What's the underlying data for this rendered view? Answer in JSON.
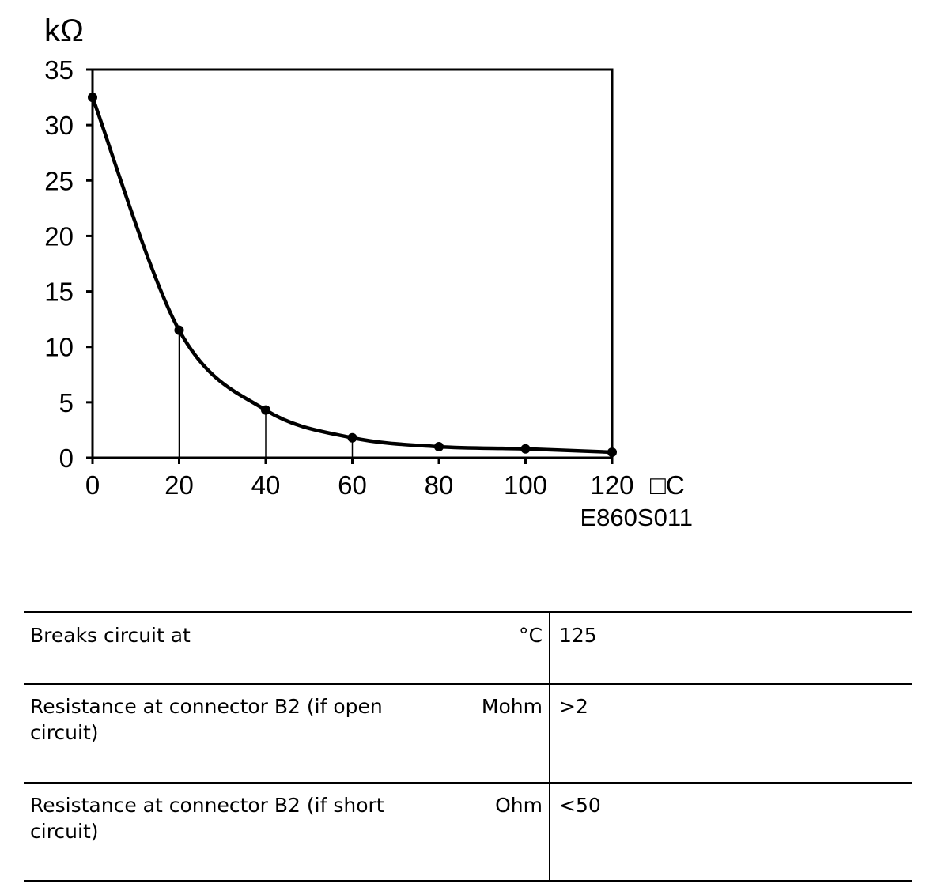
{
  "chart_data": {
    "type": "line",
    "title": "",
    "ylabel": "kΩ",
    "xlabel": "□C",
    "x": [
      0,
      20,
      40,
      60,
      80,
      100,
      120
    ],
    "series": [
      {
        "values": [
          32.5,
          11.5,
          4.3,
          1.8,
          1.0,
          0.8,
          0.5
        ]
      }
    ],
    "xlim": [
      0,
      120
    ],
    "ylim": [
      0,
      35
    ],
    "xticks": [
      "0",
      "20",
      "40",
      "60",
      "80",
      "100",
      "120"
    ],
    "yticks": [
      "0",
      "5",
      "10",
      "15",
      "20",
      "25",
      "30",
      "35"
    ],
    "drop_lines_at_x": [
      20,
      40,
      60
    ],
    "grid": false,
    "figure_code": "E860S011"
  },
  "table": {
    "rows": [
      {
        "label": "Breaks circuit at",
        "unit": "°C",
        "value": "125"
      },
      {
        "label": "Resistance at connector B2 (if open circuit)",
        "unit": "Mohm",
        "value": ">2"
      },
      {
        "label": "Resistance at connector B2 (if short circuit)",
        "unit": "Ohm",
        "value": "<50"
      }
    ]
  }
}
